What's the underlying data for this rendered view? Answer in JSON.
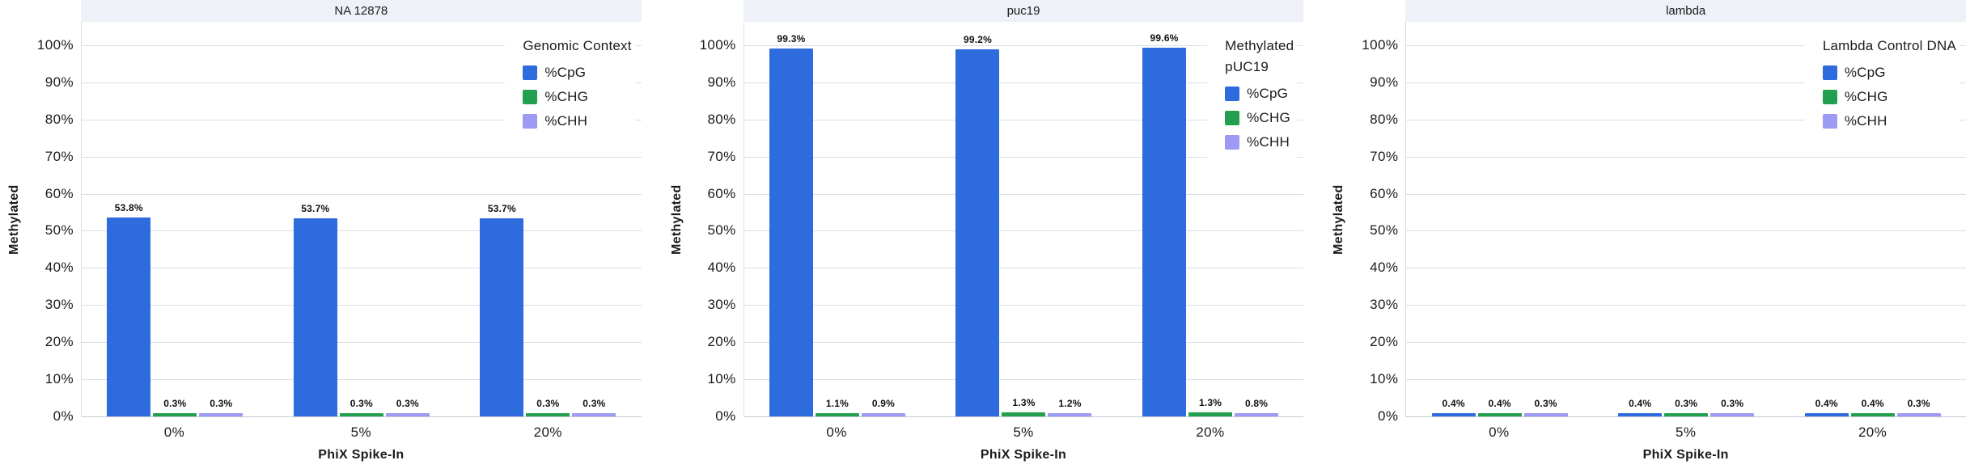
{
  "figure": {
    "y_axis_title": "Methylated",
    "x_axis_title": "PhiX Spike-In",
    "y_ticks": [
      0,
      10,
      20,
      30,
      40,
      50,
      60,
      70,
      80,
      90,
      100
    ],
    "y_tick_suffix": "%"
  },
  "style": {
    "cpg_blue": "#2E6BDC",
    "chg_green": "#22A04F",
    "chh_purple": "#9C9AF2",
    "title_strip_bg": "#EEF1F7",
    "gridline": "#D9DEE4",
    "axis_line": "#C3CAD2"
  },
  "chart_data": [
    {
      "type": "bar",
      "title": "NA 12878",
      "legend_title_lines": [
        "Genomic Context"
      ],
      "categories": [
        "0%",
        "5%",
        "20%"
      ],
      "series": [
        {
          "name": "%CpG",
          "color": "#2E6BDC",
          "values": [
            53.8,
            53.7,
            53.7
          ],
          "labels": [
            "53.8%",
            "53.7%",
            "53.7%"
          ]
        },
        {
          "name": "%CHG",
          "color": "#22A04F",
          "values": [
            0.3,
            0.3,
            0.3
          ],
          "labels": [
            "0.3%",
            "0.3%",
            "0.3%"
          ]
        },
        {
          "name": "%CHH",
          "color": "#9C9AF2",
          "values": [
            0.3,
            0.3,
            0.3
          ],
          "labels": [
            "0.3%",
            "0.3%",
            "0.3%"
          ]
        }
      ],
      "xlabel": "PhiX Spike-In",
      "ylabel": "Methylated",
      "ylim": [
        0,
        100
      ],
      "grid": true,
      "legend_position": "top-right-inside"
    },
    {
      "type": "bar",
      "title": "puc19",
      "legend_title_lines": [
        "Methylated",
        "pUC19"
      ],
      "categories": [
        "0%",
        "5%",
        "20%"
      ],
      "series": [
        {
          "name": "%CpG",
          "color": "#2E6BDC",
          "values": [
            99.3,
            99.2,
            99.6
          ],
          "labels": [
            "99.3%",
            "99.2%",
            "99.6%"
          ]
        },
        {
          "name": "%CHG",
          "color": "#22A04F",
          "values": [
            1.1,
            1.3,
            1.3
          ],
          "labels": [
            "1.1%",
            "1.3%",
            "1.3%"
          ]
        },
        {
          "name": "%CHH",
          "color": "#9C9AF2",
          "values": [
            0.9,
            1.2,
            0.8
          ],
          "labels": [
            "0.9%",
            "1.2%",
            "0.8%"
          ]
        }
      ],
      "xlabel": "PhiX Spike-In",
      "ylabel": "Methylated",
      "ylim": [
        0,
        100
      ],
      "grid": true,
      "legend_position": "top-right-inside"
    },
    {
      "type": "bar",
      "title": "lambda",
      "legend_title_lines": [
        "Lambda Control DNA"
      ],
      "categories": [
        "0%",
        "5%",
        "20%"
      ],
      "series": [
        {
          "name": "%CpG",
          "color": "#2E6BDC",
          "values": [
            0.4,
            0.4,
            0.4
          ],
          "labels": [
            "0.4%",
            "0.4%",
            "0.4%"
          ]
        },
        {
          "name": "%CHG",
          "color": "#22A04F",
          "values": [
            0.4,
            0.3,
            0.4
          ],
          "labels": [
            "0.4%",
            "0.3%",
            "0.4%"
          ]
        },
        {
          "name": "%CHH",
          "color": "#9C9AF2",
          "values": [
            0.3,
            0.3,
            0.3
          ],
          "labels": [
            "0.3%",
            "0.3%",
            "0.3%"
          ]
        }
      ],
      "xlabel": "PhiX Spike-In",
      "ylabel": "Methylated",
      "ylim": [
        0,
        100
      ],
      "grid": true,
      "legend_position": "top-right-inside"
    }
  ]
}
